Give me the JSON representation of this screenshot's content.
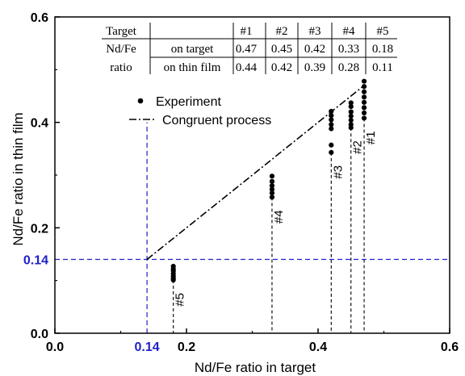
{
  "chart_data": {
    "type": "scatter",
    "xlabel": "Nd/Fe ratio in target",
    "ylabel": "Nd/Fe ratio in thin film",
    "xlim": [
      0.0,
      0.6
    ],
    "ylim": [
      0.0,
      0.6
    ],
    "x_ticks": [
      "0.0",
      "0.2",
      "0.4",
      "0.6"
    ],
    "y_ticks": [
      "0.0",
      "0.2",
      "0.4",
      "0.6"
    ],
    "highlight": {
      "value": 0.14,
      "label": "0.14",
      "color": "#2020c8"
    },
    "legend": {
      "placement": "top-left",
      "experiment_label": "Experiment",
      "congruent_label": "Congruent process"
    },
    "congruent_line": {
      "x": [
        0.14,
        0.47
      ],
      "y": [
        0.14,
        0.47
      ]
    },
    "series": [
      {
        "target": "#5",
        "x": 0.18,
        "y": [
          0.127,
          0.122,
          0.118,
          0.113,
          0.108,
          0.104,
          0.101
        ]
      },
      {
        "target": "#4",
        "x": 0.33,
        "y": [
          0.298,
          0.288,
          0.28,
          0.273,
          0.266,
          0.258
        ]
      },
      {
        "target": "#3",
        "x": 0.42,
        "y": [
          0.421,
          0.413,
          0.405,
          0.396,
          0.388,
          0.357,
          0.343
        ]
      },
      {
        "target": "#2",
        "x": 0.45,
        "y": [
          0.437,
          0.43,
          0.42,
          0.412,
          0.404,
          0.396,
          0.39
        ]
      },
      {
        "target": "#1",
        "x": 0.47,
        "y": [
          0.478,
          0.468,
          0.458,
          0.448,
          0.438,
          0.428,
          0.418,
          0.408
        ]
      }
    ],
    "table": {
      "header_label": "Target",
      "columns": [
        "#1",
        "#2",
        "#3",
        "#4",
        "#5"
      ],
      "row_group_top": "Nd/Fe",
      "row_group_bottom": "ratio",
      "rows": [
        {
          "label": "on target",
          "values": [
            "0.47",
            "0.45",
            "0.42",
            "0.33",
            "0.18"
          ]
        },
        {
          "label": "on thin film",
          "values": [
            "0.44",
            "0.42",
            "0.39",
            "0.28",
            "0.11"
          ]
        }
      ]
    }
  }
}
